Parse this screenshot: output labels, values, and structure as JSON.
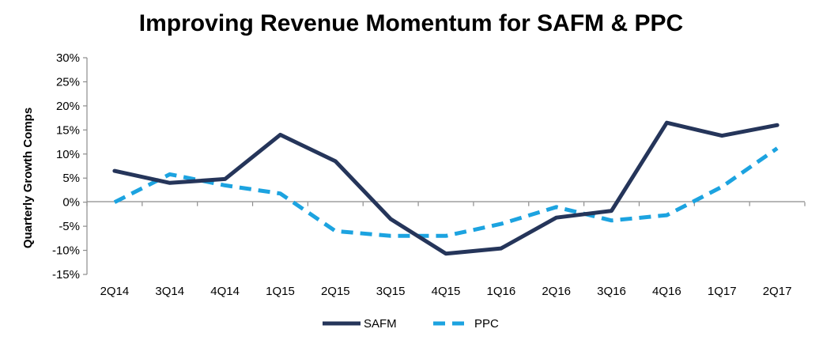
{
  "chart_data": {
    "type": "line",
    "title": "Improving Revenue Momentum for SAFM & PPC",
    "xlabel": "",
    "ylabel": "Quarterly  Growth Comps",
    "categories": [
      "2Q14",
      "3Q14",
      "4Q14",
      "1Q15",
      "2Q15",
      "3Q15",
      "4Q15",
      "1Q16",
      "2Q16",
      "3Q16",
      "4Q16",
      "1Q17",
      "2Q17"
    ],
    "ylim": [
      -15,
      30
    ],
    "yticks": [
      30,
      25,
      20,
      15,
      10,
      5,
      0,
      -5,
      -10,
      -15
    ],
    "ytick_labels": [
      "30%",
      "25%",
      "20%",
      "15%",
      "10%",
      "5%",
      "0%",
      "-5%",
      "-10%",
      "-15%"
    ],
    "grid": false,
    "legend_position": "bottom",
    "series": [
      {
        "name": "SAFM",
        "color": "#25355a",
        "style": "solid",
        "values": [
          6.5,
          4.0,
          4.8,
          14.0,
          8.5,
          -3.5,
          -10.7,
          -9.6,
          -3.2,
          -1.8,
          16.5,
          13.8,
          16.0
        ]
      },
      {
        "name": "PPC",
        "color": "#1ca3e0",
        "style": "dashed",
        "values": [
          0.0,
          5.8,
          3.5,
          1.8,
          -6.0,
          -7.0,
          -7.0,
          -4.5,
          -1.0,
          -3.8,
          -2.7,
          3.2,
          11.2
        ]
      }
    ]
  }
}
